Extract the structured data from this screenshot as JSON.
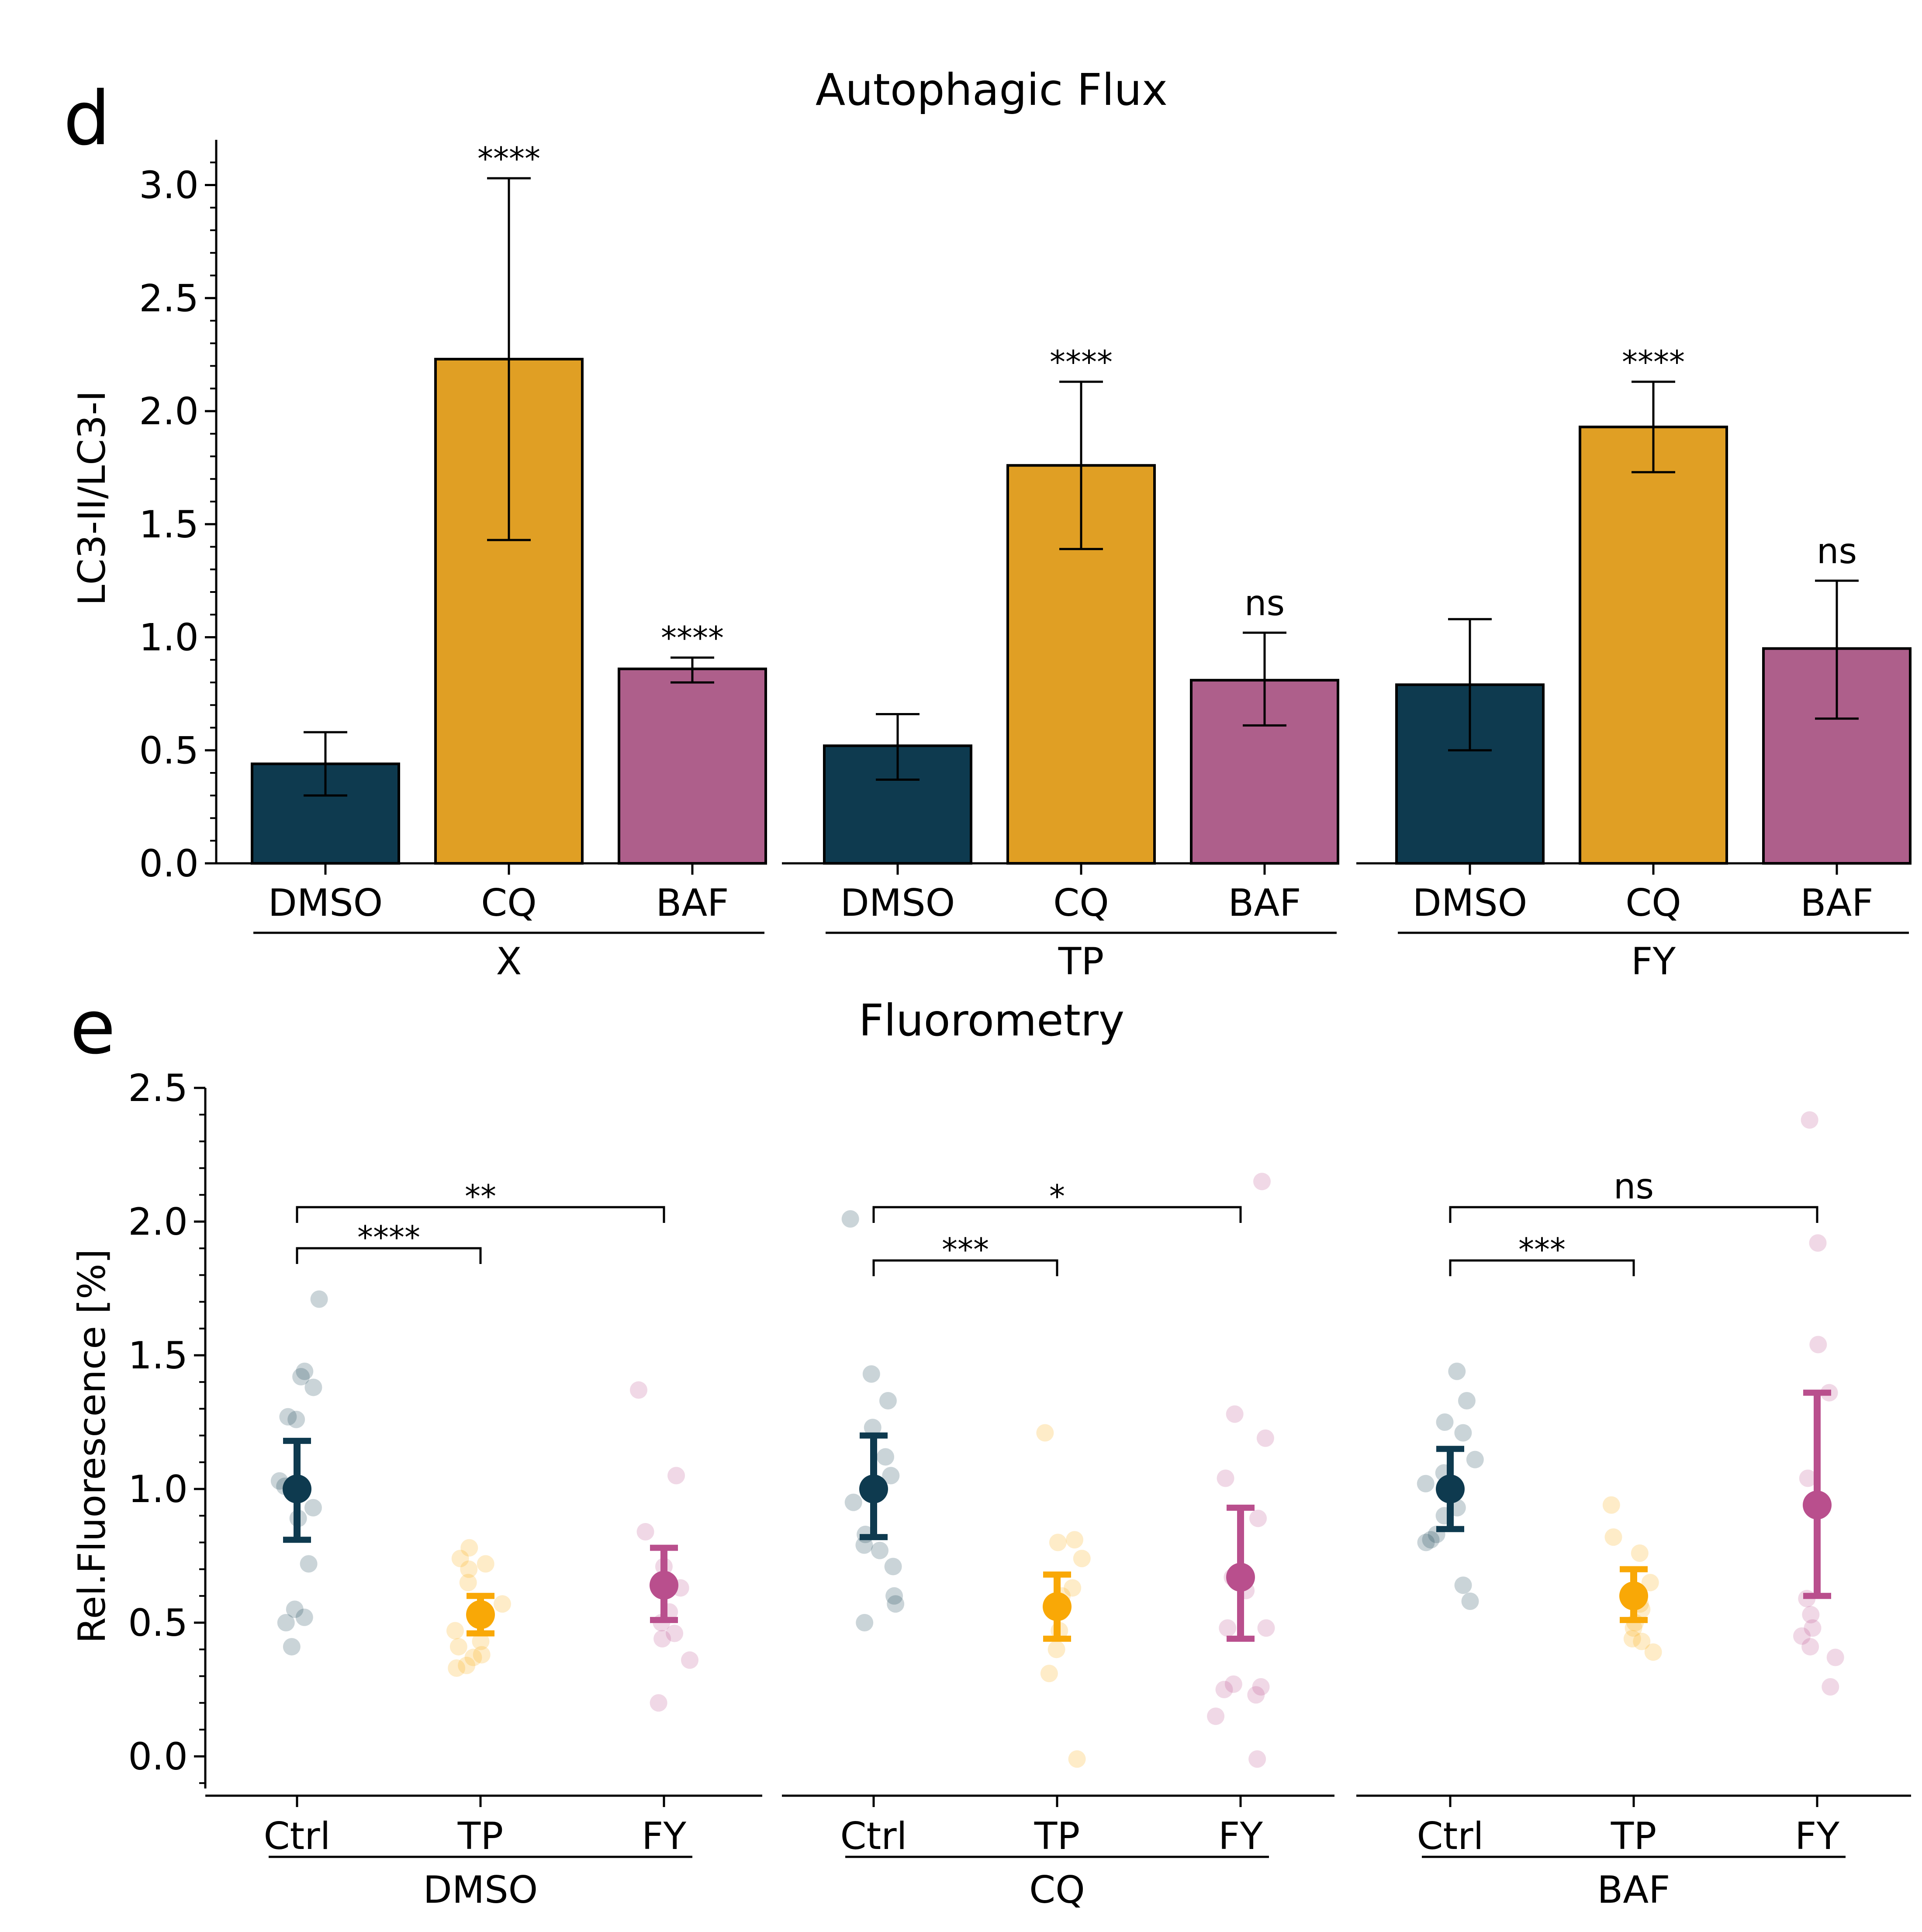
{
  "panels": {
    "d": {
      "label": "d"
    },
    "e": {
      "label": "e"
    }
  },
  "chart_data": [
    {
      "type": "bar",
      "panel": "d",
      "title": "Autophagic Flux",
      "ylabel": "LC3-II/LC3-I",
      "ylim": [
        0,
        3.2
      ],
      "yticks": [
        "0.0",
        "0.5",
        "1.0",
        "1.5",
        "2.0",
        "2.5",
        "3.0"
      ],
      "colors": [
        "#0e3a4f",
        "#e09f24",
        "#ae5f8b"
      ],
      "groups": [
        {
          "name": "X",
          "categories": [
            "DMSO",
            "CQ",
            "BAF"
          ],
          "values": [
            0.44,
            2.23,
            0.86
          ],
          "err_low": [
            0.3,
            1.43,
            0.8
          ],
          "err_high": [
            0.58,
            3.03,
            0.91
          ],
          "annotations": [
            "",
            "****",
            "****"
          ]
        },
        {
          "name": "TP",
          "categories": [
            "DMSO",
            "CQ",
            "BAF"
          ],
          "values": [
            0.52,
            1.76,
            0.81
          ],
          "err_low": [
            0.37,
            1.39,
            0.61
          ],
          "err_high": [
            0.66,
            2.13,
            1.02
          ],
          "annotations": [
            "",
            "****",
            "ns"
          ]
        },
        {
          "name": "FY",
          "categories": [
            "DMSO",
            "CQ",
            "BAF"
          ],
          "values": [
            0.79,
            1.93,
            0.95
          ],
          "err_low": [
            0.5,
            1.73,
            0.64
          ],
          "err_high": [
            1.08,
            2.13,
            1.25
          ],
          "annotations": [
            "",
            "****",
            "ns"
          ]
        }
      ]
    },
    {
      "type": "scatter",
      "panel": "e",
      "title": "Fluorometry",
      "ylabel": "Rel.Fluorescence [%]",
      "ylim": [
        -0.12,
        2.5
      ],
      "yticks": [
        "0.0",
        "0.5",
        "1.0",
        "1.5",
        "2.0",
        "2.5"
      ],
      "colors": [
        "#0e3a4f",
        "#f9a806",
        "#b94f8d"
      ],
      "groups": [
        {
          "name": "DMSO",
          "categories": [
            "Ctrl",
            "TP",
            "FY"
          ],
          "means": [
            1.0,
            0.53,
            0.64
          ],
          "err_low": [
            0.81,
            0.46,
            0.51
          ],
          "err_high": [
            1.18,
            0.6,
            0.78
          ],
          "points": [
            [
              1.71,
              1.44,
              1.42,
              1.38,
              1.27,
              1.26,
              1.03,
              1.01,
              0.93,
              0.89,
              0.72,
              0.55,
              0.52,
              0.5,
              0.41
            ],
            [
              0.78,
              0.74,
              0.72,
              0.7,
              0.65,
              0.57,
              0.51,
              0.47,
              0.43,
              0.41,
              0.38,
              0.37,
              0.34,
              0.33
            ],
            [
              1.37,
              1.05,
              0.84,
              0.71,
              0.63,
              0.54,
              0.5,
              0.46,
              0.44,
              0.36,
              0.2
            ]
          ],
          "comparisons": [
            {
              "between": [
                "Ctrl",
                "TP"
              ],
              "label": "****"
            },
            {
              "between": [
                "Ctrl",
                "FY"
              ],
              "label": "**"
            }
          ]
        },
        {
          "name": "CQ",
          "categories": [
            "Ctrl",
            "TP",
            "FY"
          ],
          "means": [
            1.0,
            0.56,
            0.67
          ],
          "err_low": [
            0.82,
            0.44,
            0.44
          ],
          "err_high": [
            1.2,
            0.68,
            0.93
          ],
          "points": [
            [
              2.01,
              1.43,
              1.33,
              1.23,
              1.12,
              1.05,
              1.01,
              0.95,
              0.83,
              0.79,
              0.77,
              0.71,
              0.6,
              0.57,
              0.5
            ],
            [
              1.21,
              0.81,
              0.8,
              0.74,
              0.63,
              0.6,
              0.54,
              0.47,
              0.4,
              0.31,
              -0.01
            ],
            [
              2.15,
              1.28,
              1.19,
              1.04,
              0.89,
              0.67,
              0.62,
              0.48,
              0.48,
              0.27,
              0.26,
              0.25,
              0.23,
              0.15,
              -0.01
            ]
          ],
          "comparisons": [
            {
              "between": [
                "Ctrl",
                "TP"
              ],
              "label": "***"
            },
            {
              "between": [
                "Ctrl",
                "FY"
              ],
              "label": "*"
            }
          ]
        },
        {
          "name": "BAF",
          "categories": [
            "Ctrl",
            "TP",
            "FY"
          ],
          "means": [
            1.0,
            0.6,
            0.94
          ],
          "err_low": [
            0.85,
            0.51,
            0.6
          ],
          "err_high": [
            1.15,
            0.7,
            1.36
          ],
          "points": [
            [
              1.44,
              1.33,
              1.25,
              1.21,
              1.11,
              1.06,
              1.02,
              0.93,
              0.9,
              0.83,
              0.81,
              0.8,
              0.64,
              0.58
            ],
            [
              0.94,
              0.82,
              0.76,
              0.65,
              0.6,
              0.57,
              0.55,
              0.5,
              0.48,
              0.44,
              0.43,
              0.39
            ],
            [
              2.38,
              1.92,
              1.54,
              1.36,
              1.04,
              0.59,
              0.53,
              0.48,
              0.45,
              0.41,
              0.37,
              0.26
            ]
          ],
          "comparisons": [
            {
              "between": [
                "Ctrl",
                "TP"
              ],
              "label": "***"
            },
            {
              "between": [
                "Ctrl",
                "FY"
              ],
              "label": "ns"
            }
          ]
        }
      ]
    }
  ]
}
